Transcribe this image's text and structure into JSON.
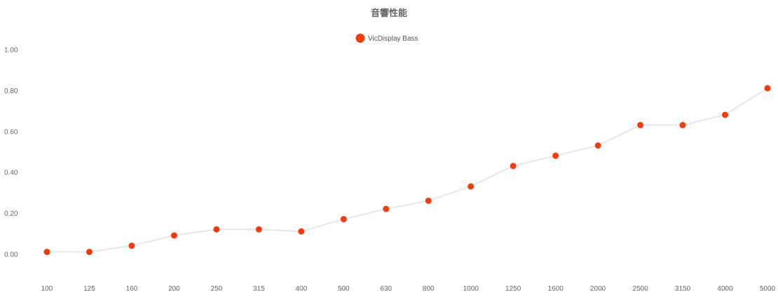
{
  "chart_data": {
    "type": "line",
    "title": "音響性能",
    "xlabel": "",
    "ylabel": "",
    "categories": [
      "100",
      "125",
      "160",
      "200",
      "250",
      "315",
      "400",
      "500",
      "630",
      "800",
      "1000",
      "1250",
      "1600",
      "2000",
      "2500",
      "3150",
      "4000",
      "5000"
    ],
    "series": [
      {
        "name": "VicDisplay Bass",
        "values": [
          0.01,
          0.01,
          0.04,
          0.09,
          0.12,
          0.12,
          0.11,
          0.17,
          0.22,
          0.26,
          0.33,
          0.43,
          0.48,
          0.53,
          0.63,
          0.63,
          0.68,
          0.81
        ]
      }
    ],
    "yticks": [
      "0.00",
      "0.20",
      "0.40",
      "0.60",
      "0.80",
      "1.00"
    ],
    "ylim": [
      0,
      1
    ],
    "grid": false,
    "legend_position": "top-center",
    "colors": {
      "marker": "#f23c0c",
      "line": "#e6e6e6",
      "title": "#666666",
      "tick": "#666666"
    }
  }
}
